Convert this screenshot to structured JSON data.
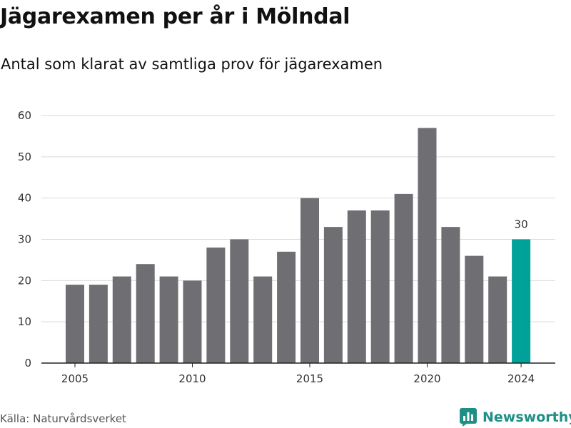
{
  "title": "Jägarexamen per år i Mölndal",
  "subtitle": "Antal som klarat av samtliga prov för jägarexamen",
  "source": "Källa: Naturvårdsverket",
  "brand": {
    "name": "Newsworthy",
    "icon": "newsworthy-logo-icon",
    "color": "#1f8f86"
  },
  "colors": {
    "bar": "#6f6e73",
    "highlight": "#00a199",
    "grid": "#d9d9d9",
    "axis": "#222222",
    "text": "#333333"
  },
  "chart_data": {
    "type": "bar",
    "categories": [
      "2005",
      "2006",
      "2007",
      "2008",
      "2009",
      "2010",
      "2011",
      "2012",
      "2013",
      "2014",
      "2015",
      "2016",
      "2017",
      "2018",
      "2019",
      "2020",
      "2021",
      "2022",
      "2023",
      "2024"
    ],
    "values": [
      19,
      19,
      21,
      24,
      21,
      20,
      28,
      30,
      21,
      27,
      40,
      33,
      37,
      37,
      41,
      57,
      33,
      26,
      21,
      30
    ],
    "highlight_index": 19,
    "data_labels": [
      {
        "category": "2024",
        "label": "30"
      }
    ],
    "xticks": [
      "2005",
      "2010",
      "2015",
      "2020",
      "2024"
    ],
    "yticks": [
      0,
      10,
      20,
      30,
      40,
      50,
      60
    ],
    "ylim": [
      0,
      60
    ],
    "grid": true,
    "xlabel": "",
    "ylabel": ""
  }
}
